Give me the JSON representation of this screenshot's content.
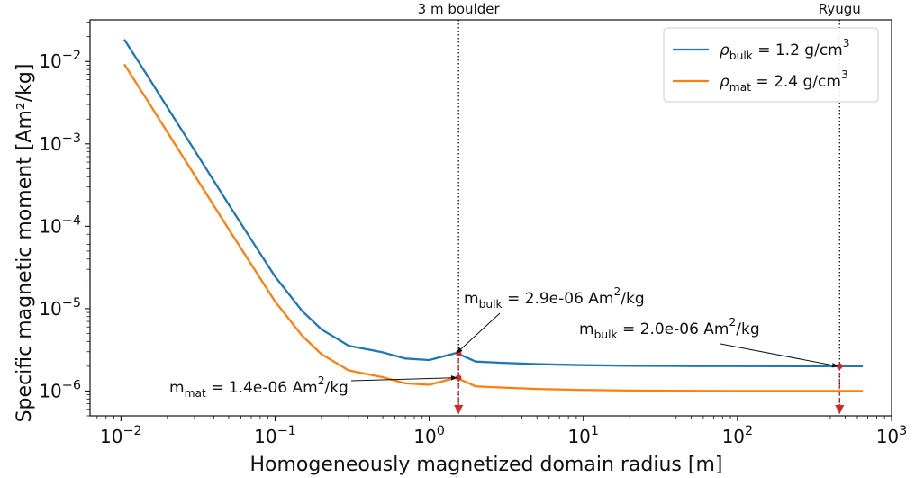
{
  "chart_data": {
    "type": "line",
    "xlabel": "Homogeneously magnetized domain radius [m]",
    "ylabel": "Specific magnetic moment [Am²/kg]",
    "xscale": "log",
    "yscale": "log",
    "xlim": [
      0.0063,
      1000
    ],
    "ylim": [
      5e-07,
      0.032
    ],
    "grid": false,
    "legend_position": "top-right",
    "x_ticks": [
      {
        "value": 0.01,
        "base": "10",
        "exp": "−2"
      },
      {
        "value": 0.1,
        "base": "10",
        "exp": "−1"
      },
      {
        "value": 1,
        "base": "10",
        "exp": "0"
      },
      {
        "value": 10,
        "base": "10",
        "exp": "1"
      },
      {
        "value": 100,
        "base": "10",
        "exp": "2"
      },
      {
        "value": 1000,
        "base": "10",
        "exp": "3"
      }
    ],
    "y_ticks": [
      {
        "value": 1e-06,
        "base": "10",
        "exp": "−6"
      },
      {
        "value": 1e-05,
        "base": "10",
        "exp": "−5"
      },
      {
        "value": 0.0001,
        "base": "10",
        "exp": "−4"
      },
      {
        "value": 0.001,
        "base": "10",
        "exp": "−3"
      },
      {
        "value": 0.01,
        "base": "10",
        "exp": "−2"
      }
    ],
    "series": [
      {
        "name": "ρbulk = 1.2 g/cm³",
        "legend_sym": "ρ",
        "legend_sub": "bulk",
        "legend_val": " = 1.2 g/cm",
        "legend_sup": "3",
        "color": "#1f77b4",
        "x": [
          0.0105,
          0.015,
          0.02,
          0.03,
          0.05,
          0.07,
          0.1,
          0.15,
          0.2,
          0.3,
          0.5,
          0.7,
          1.0,
          1.5,
          2,
          3,
          5,
          10,
          20,
          50,
          100,
          300,
          650
        ],
        "y": [
          0.0185,
          0.00652,
          0.00277,
          0.000836,
          0.000184,
          6.9e-05,
          2.45e-05,
          9.35e-06,
          5.6e-06,
          3.55e-06,
          2.95e-06,
          2.48e-06,
          2.38e-06,
          2.9e-06,
          2.28e-06,
          2.2e-06,
          2.12e-06,
          2.06e-06,
          2.03e-06,
          2.01e-06,
          2.005e-06,
          2e-06,
          2e-06
        ]
      },
      {
        "name": "ρmat = 2.4 g/cm³",
        "legend_sym": "ρ",
        "legend_sub": "mat",
        "legend_val": " = 2.4 g/cm",
        "legend_sup": "3",
        "color": "#ff7f0e",
        "x": [
          0.0105,
          0.015,
          0.02,
          0.03,
          0.05,
          0.07,
          0.1,
          0.15,
          0.2,
          0.3,
          0.5,
          0.7,
          1.0,
          1.5,
          2,
          3,
          5,
          10,
          20,
          50,
          100,
          300,
          650
        ],
        "y": [
          0.00925,
          0.00326,
          0.00139,
          0.000418,
          9.2e-05,
          3.45e-05,
          1.22e-05,
          4.68e-06,
          2.8e-06,
          1.78e-06,
          1.47e-06,
          1.24e-06,
          1.19e-06,
          1.45e-06,
          1.14e-06,
          1.1e-06,
          1.06e-06,
          1.03e-06,
          1.015e-06,
          1.005e-06,
          1.002e-06,
          1e-06,
          1e-06
        ]
      }
    ],
    "reference_lines": [
      {
        "x": 1.55,
        "label": "3 m boulder"
      },
      {
        "x": 460,
        "label": "Ryugu"
      }
    ],
    "markers": [
      {
        "x": 1.55,
        "y": 2.9e-06,
        "color": "#d62728"
      },
      {
        "x": 1.55,
        "y": 1.45e-06,
        "color": "#d62728"
      },
      {
        "x": 460,
        "y": 2e-06,
        "color": "#d62728"
      }
    ],
    "drop_arrows": [
      {
        "x": 1.55,
        "from_y": 2.9e-06,
        "color": "#d62728"
      },
      {
        "x": 460,
        "from_y": 2e-06,
        "color": "#d62728"
      }
    ],
    "annotations": [
      {
        "pre": "m",
        "sub": "bulk",
        "mid": " = 2.9e-06 Am",
        "sup": "2",
        "post": "/kg",
        "target_x": 1.55,
        "target_y": 2.9e-06
      },
      {
        "pre": "m",
        "sub": "bulk",
        "mid": " = 2.0e-06 Am",
        "sup": "2",
        "post": "/kg",
        "target_x": 460,
        "target_y": 2e-06
      },
      {
        "pre": "m",
        "sub": "mat",
        "mid": " = 1.4e-06 Am",
        "sup": "2",
        "post": "/kg",
        "target_x": 1.55,
        "target_y": 1.45e-06
      }
    ]
  }
}
